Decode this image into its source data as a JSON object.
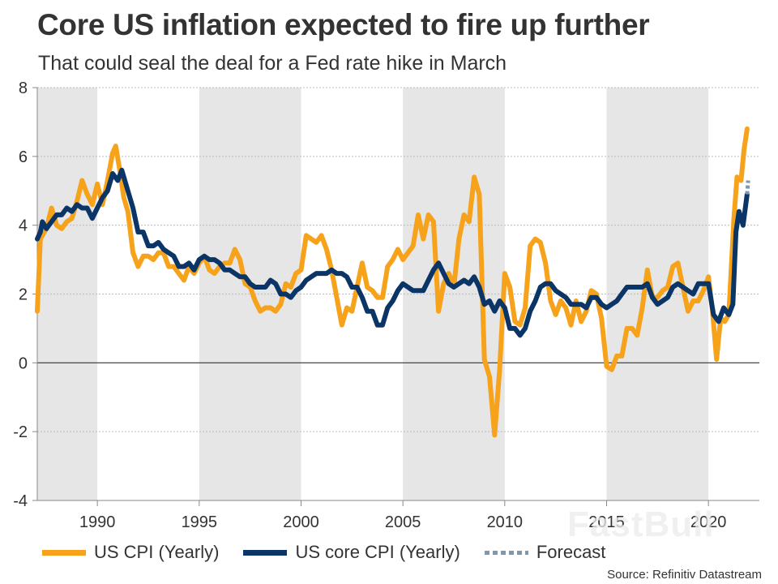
{
  "header": {
    "title": "Core US inflation expected to fire up further",
    "subtitle": "That could seal the deal for a Fed rate hike in March"
  },
  "legend": [
    {
      "label": "US CPI (Yearly)",
      "color": "#f7a21b",
      "style": "solid"
    },
    {
      "label": "US core CPI (Yearly)",
      "color": "#0b3566",
      "style": "solid"
    },
    {
      "label": "Forecast",
      "color": "#7f98b1",
      "style": "dotted"
    }
  ],
  "source": "Source: Refinitiv Datastream",
  "watermark": "FastBull",
  "chart_data": {
    "type": "line",
    "title": "Core US inflation expected to fire up further",
    "subtitle": "That could seal the deal for a Fed rate hike in March",
    "xlabel": "",
    "ylabel": "",
    "xlim": [
      1987.05,
      2022.5
    ],
    "ylim": [
      -4,
      8
    ],
    "yticks": [
      -4,
      -2,
      0,
      2,
      4,
      6,
      8
    ],
    "ytick_labels": [
      "-4",
      "-2",
      "0",
      "2",
      "4",
      "6",
      "8"
    ],
    "xticks": [
      1990,
      1995,
      2000,
      2005,
      2010,
      2015,
      2020
    ],
    "xtick_labels": [
      "1990",
      "1995",
      "2000",
      "2005",
      "2010",
      "2015",
      "2020"
    ],
    "grid": "horizontal dotted",
    "shaded_bands": [
      [
        1987.05,
        1990
      ],
      [
        1995,
        2000
      ],
      [
        2005,
        2010
      ],
      [
        2015,
        2020
      ]
    ],
    "legend_position": "bottom",
    "series": [
      {
        "name": "US CPI (Yearly)",
        "color": "#f7a21b",
        "points": [
          [
            1987.05,
            1.5
          ],
          [
            1987.2,
            3.6
          ],
          [
            1987.5,
            3.9
          ],
          [
            1987.75,
            4.5
          ],
          [
            1988.0,
            4.0
          ],
          [
            1988.25,
            3.9
          ],
          [
            1988.5,
            4.1
          ],
          [
            1988.75,
            4.2
          ],
          [
            1989.0,
            4.7
          ],
          [
            1989.25,
            5.3
          ],
          [
            1989.5,
            4.9
          ],
          [
            1989.75,
            4.6
          ],
          [
            1990.0,
            5.2
          ],
          [
            1990.25,
            4.6
          ],
          [
            1990.5,
            5.3
          ],
          [
            1990.75,
            6.1
          ],
          [
            1990.9,
            6.3
          ],
          [
            1991.1,
            5.6
          ],
          [
            1991.3,
            4.8
          ],
          [
            1991.5,
            4.4
          ],
          [
            1991.75,
            3.2
          ],
          [
            1992.0,
            2.8
          ],
          [
            1992.25,
            3.1
          ],
          [
            1992.5,
            3.1
          ],
          [
            1992.75,
            3.0
          ],
          [
            1993.0,
            3.2
          ],
          [
            1993.25,
            3.2
          ],
          [
            1993.5,
            2.8
          ],
          [
            1993.75,
            2.8
          ],
          [
            1994.0,
            2.6
          ],
          [
            1994.25,
            2.4
          ],
          [
            1994.5,
            2.8
          ],
          [
            1994.75,
            2.6
          ],
          [
            1995.0,
            2.9
          ],
          [
            1995.25,
            3.1
          ],
          [
            1995.5,
            2.7
          ],
          [
            1995.75,
            2.6
          ],
          [
            1996.0,
            2.8
          ],
          [
            1996.25,
            2.9
          ],
          [
            1996.5,
            2.9
          ],
          [
            1996.75,
            3.3
          ],
          [
            1997.0,
            3.0
          ],
          [
            1997.25,
            2.3
          ],
          [
            1997.5,
            2.2
          ],
          [
            1997.75,
            1.8
          ],
          [
            1998.0,
            1.5
          ],
          [
            1998.25,
            1.6
          ],
          [
            1998.5,
            1.6
          ],
          [
            1998.75,
            1.5
          ],
          [
            1999.0,
            1.7
          ],
          [
            1999.25,
            2.3
          ],
          [
            1999.5,
            2.2
          ],
          [
            1999.75,
            2.6
          ],
          [
            2000.0,
            2.7
          ],
          [
            2000.25,
            3.7
          ],
          [
            2000.5,
            3.6
          ],
          [
            2000.75,
            3.5
          ],
          [
            2001.0,
            3.7
          ],
          [
            2001.25,
            3.3
          ],
          [
            2001.5,
            2.7
          ],
          [
            2001.75,
            1.9
          ],
          [
            2002.0,
            1.1
          ],
          [
            2002.25,
            1.6
          ],
          [
            2002.5,
            1.5
          ],
          [
            2002.75,
            2.2
          ],
          [
            2003.0,
            2.9
          ],
          [
            2003.25,
            2.2
          ],
          [
            2003.5,
            2.1
          ],
          [
            2003.75,
            1.9
          ],
          [
            2004.0,
            1.9
          ],
          [
            2004.25,
            2.8
          ],
          [
            2004.5,
            3.0
          ],
          [
            2004.75,
            3.3
          ],
          [
            2005.0,
            3.0
          ],
          [
            2005.25,
            3.2
          ],
          [
            2005.5,
            3.4
          ],
          [
            2005.75,
            4.3
          ],
          [
            2006.0,
            3.6
          ],
          [
            2006.25,
            4.3
          ],
          [
            2006.5,
            4.1
          ],
          [
            2006.75,
            1.5
          ],
          [
            2007.0,
            2.3
          ],
          [
            2007.25,
            2.6
          ],
          [
            2007.5,
            2.2
          ],
          [
            2007.75,
            3.6
          ],
          [
            2008.0,
            4.3
          ],
          [
            2008.25,
            4.1
          ],
          [
            2008.5,
            5.4
          ],
          [
            2008.75,
            4.9
          ],
          [
            2009.0,
            0.1
          ],
          [
            2009.25,
            -0.4
          ],
          [
            2009.5,
            -2.1
          ],
          [
            2009.75,
            -0.2
          ],
          [
            2010.0,
            2.6
          ],
          [
            2010.25,
            2.2
          ],
          [
            2010.5,
            1.2
          ],
          [
            2010.75,
            1.1
          ],
          [
            2011.0,
            1.6
          ],
          [
            2011.25,
            3.4
          ],
          [
            2011.5,
            3.6
          ],
          [
            2011.75,
            3.5
          ],
          [
            2012.0,
            2.9
          ],
          [
            2012.25,
            1.8
          ],
          [
            2012.5,
            1.4
          ],
          [
            2012.75,
            1.8
          ],
          [
            2013.0,
            1.6
          ],
          [
            2013.25,
            1.1
          ],
          [
            2013.5,
            1.8
          ],
          [
            2013.75,
            1.2
          ],
          [
            2014.0,
            1.5
          ],
          [
            2014.25,
            2.1
          ],
          [
            2014.5,
            2.0
          ],
          [
            2014.75,
            1.3
          ],
          [
            2015.0,
            -0.1
          ],
          [
            2015.25,
            -0.2
          ],
          [
            2015.5,
            0.2
          ],
          [
            2015.75,
            0.2
          ],
          [
            2016.0,
            1.0
          ],
          [
            2016.25,
            1.0
          ],
          [
            2016.5,
            0.8
          ],
          [
            2016.75,
            1.6
          ],
          [
            2017.0,
            2.7
          ],
          [
            2017.25,
            1.9
          ],
          [
            2017.5,
            1.9
          ],
          [
            2017.75,
            2.1
          ],
          [
            2018.0,
            2.2
          ],
          [
            2018.25,
            2.8
          ],
          [
            2018.5,
            2.9
          ],
          [
            2018.75,
            2.2
          ],
          [
            2019.0,
            1.5
          ],
          [
            2019.25,
            1.8
          ],
          [
            2019.5,
            1.8
          ],
          [
            2019.75,
            2.1
          ],
          [
            2020.0,
            2.5
          ],
          [
            2020.2,
            1.5
          ],
          [
            2020.4,
            0.1
          ],
          [
            2020.6,
            1.3
          ],
          [
            2020.8,
            1.2
          ],
          [
            2021.0,
            1.4
          ],
          [
            2021.25,
            4.2
          ],
          [
            2021.4,
            5.4
          ],
          [
            2021.6,
            5.3
          ],
          [
            2021.75,
            6.2
          ],
          [
            2021.9,
            6.8
          ]
        ]
      },
      {
        "name": "US core CPI (Yearly)",
        "color": "#0b3566",
        "points": [
          [
            1987.05,
            3.6
          ],
          [
            1987.2,
            3.8
          ],
          [
            1987.3,
            4.1
          ],
          [
            1987.5,
            3.9
          ],
          [
            1987.75,
            4.1
          ],
          [
            1988.0,
            4.3
          ],
          [
            1988.25,
            4.3
          ],
          [
            1988.5,
            4.5
          ],
          [
            1988.75,
            4.4
          ],
          [
            1989.0,
            4.6
          ],
          [
            1989.25,
            4.5
          ],
          [
            1989.5,
            4.5
          ],
          [
            1989.75,
            4.2
          ],
          [
            1990.0,
            4.5
          ],
          [
            1990.25,
            4.8
          ],
          [
            1990.5,
            5.0
          ],
          [
            1990.75,
            5.5
          ],
          [
            1991.0,
            5.3
          ],
          [
            1991.2,
            5.6
          ],
          [
            1991.5,
            5.0
          ],
          [
            1991.75,
            4.5
          ],
          [
            1992.0,
            3.8
          ],
          [
            1992.25,
            3.8
          ],
          [
            1992.5,
            3.4
          ],
          [
            1992.75,
            3.4
          ],
          [
            1993.0,
            3.5
          ],
          [
            1993.25,
            3.3
          ],
          [
            1993.5,
            3.2
          ],
          [
            1993.75,
            3.1
          ],
          [
            1994.0,
            2.8
          ],
          [
            1994.25,
            2.8
          ],
          [
            1994.5,
            2.9
          ],
          [
            1994.75,
            2.7
          ],
          [
            1995.0,
            3.0
          ],
          [
            1995.25,
            3.1
          ],
          [
            1995.5,
            3.0
          ],
          [
            1995.75,
            3.0
          ],
          [
            1996.0,
            2.9
          ],
          [
            1996.25,
            2.7
          ],
          [
            1996.5,
            2.7
          ],
          [
            1996.75,
            2.6
          ],
          [
            1997.0,
            2.5
          ],
          [
            1997.25,
            2.5
          ],
          [
            1997.5,
            2.3
          ],
          [
            1997.75,
            2.2
          ],
          [
            1998.0,
            2.2
          ],
          [
            1998.25,
            2.2
          ],
          [
            1998.5,
            2.4
          ],
          [
            1998.75,
            2.3
          ],
          [
            1999.0,
            2.0
          ],
          [
            1999.25,
            2.0
          ],
          [
            1999.5,
            1.9
          ],
          [
            1999.75,
            2.1
          ],
          [
            2000.0,
            2.2
          ],
          [
            2000.25,
            2.4
          ],
          [
            2000.5,
            2.5
          ],
          [
            2000.75,
            2.6
          ],
          [
            2001.0,
            2.6
          ],
          [
            2001.25,
            2.6
          ],
          [
            2001.5,
            2.7
          ],
          [
            2001.75,
            2.6
          ],
          [
            2002.0,
            2.6
          ],
          [
            2002.25,
            2.5
          ],
          [
            2002.5,
            2.2
          ],
          [
            2002.75,
            2.2
          ],
          [
            2003.0,
            1.9
          ],
          [
            2003.25,
            1.5
          ],
          [
            2003.5,
            1.5
          ],
          [
            2003.75,
            1.1
          ],
          [
            2004.0,
            1.1
          ],
          [
            2004.25,
            1.6
          ],
          [
            2004.5,
            1.8
          ],
          [
            2004.75,
            2.1
          ],
          [
            2005.0,
            2.3
          ],
          [
            2005.25,
            2.2
          ],
          [
            2005.5,
            2.1
          ],
          [
            2005.75,
            2.1
          ],
          [
            2006.0,
            2.1
          ],
          [
            2006.25,
            2.4
          ],
          [
            2006.5,
            2.7
          ],
          [
            2006.75,
            2.9
          ],
          [
            2007.0,
            2.6
          ],
          [
            2007.25,
            2.3
          ],
          [
            2007.5,
            2.2
          ],
          [
            2007.75,
            2.3
          ],
          [
            2008.0,
            2.4
          ],
          [
            2008.25,
            2.3
          ],
          [
            2008.5,
            2.5
          ],
          [
            2008.75,
            2.2
          ],
          [
            2009.0,
            1.7
          ],
          [
            2009.25,
            1.8
          ],
          [
            2009.5,
            1.5
          ],
          [
            2009.75,
            1.8
          ],
          [
            2010.0,
            1.6
          ],
          [
            2010.25,
            1.0
          ],
          [
            2010.5,
            1.0
          ],
          [
            2010.75,
            0.8
          ],
          [
            2011.0,
            1.0
          ],
          [
            2011.25,
            1.5
          ],
          [
            2011.5,
            1.8
          ],
          [
            2011.75,
            2.2
          ],
          [
            2012.0,
            2.3
          ],
          [
            2012.25,
            2.3
          ],
          [
            2012.5,
            2.1
          ],
          [
            2012.75,
            2.0
          ],
          [
            2013.0,
            1.9
          ],
          [
            2013.25,
            1.7
          ],
          [
            2013.5,
            1.7
          ],
          [
            2013.75,
            1.7
          ],
          [
            2014.0,
            1.6
          ],
          [
            2014.25,
            1.9
          ],
          [
            2014.5,
            1.9
          ],
          [
            2014.75,
            1.7
          ],
          [
            2015.0,
            1.6
          ],
          [
            2015.25,
            1.7
          ],
          [
            2015.5,
            1.8
          ],
          [
            2015.75,
            2.0
          ],
          [
            2016.0,
            2.2
          ],
          [
            2016.25,
            2.2
          ],
          [
            2016.5,
            2.2
          ],
          [
            2016.75,
            2.2
          ],
          [
            2017.0,
            2.3
          ],
          [
            2017.25,
            1.9
          ],
          [
            2017.5,
            1.7
          ],
          [
            2017.75,
            1.8
          ],
          [
            2018.0,
            1.9
          ],
          [
            2018.25,
            2.2
          ],
          [
            2018.5,
            2.3
          ],
          [
            2018.75,
            2.2
          ],
          [
            2019.0,
            2.1
          ],
          [
            2019.25,
            2.0
          ],
          [
            2019.5,
            2.3
          ],
          [
            2019.75,
            2.3
          ],
          [
            2020.0,
            2.3
          ],
          [
            2020.25,
            1.4
          ],
          [
            2020.5,
            1.2
          ],
          [
            2020.75,
            1.6
          ],
          [
            2021.0,
            1.4
          ],
          [
            2021.2,
            1.7
          ],
          [
            2021.35,
            3.8
          ],
          [
            2021.5,
            4.4
          ],
          [
            2021.7,
            4.0
          ],
          [
            2021.9,
            4.9
          ]
        ]
      },
      {
        "name": "Forecast",
        "color": "#7f98b1",
        "style": "dotted",
        "points": [
          [
            2021.9,
            4.9
          ],
          [
            2021.95,
            5.3
          ]
        ]
      }
    ]
  }
}
